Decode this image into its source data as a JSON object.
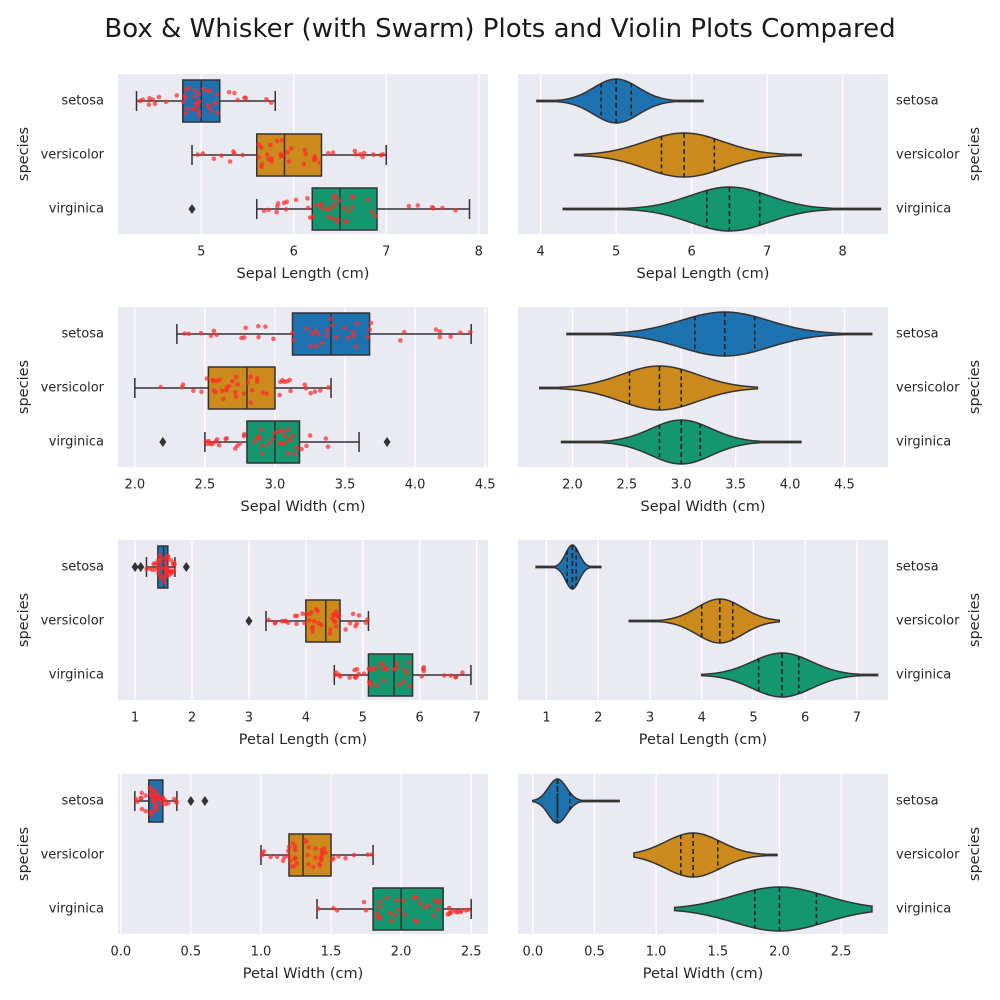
{
  "title": "Box & Whisker (with Swarm) Plots and Violin Plots Compared",
  "colors": {
    "setosa": "#1f72b0",
    "versicolor": "#cc8a1c",
    "virginica": "#14976f",
    "swarm": "#ff2a2a",
    "panel": "#eaeaf2"
  },
  "species": [
    "setosa",
    "versicolor",
    "virginica"
  ],
  "ylabel": "species",
  "chart_data": [
    {
      "type": "box",
      "side": "left",
      "xlabel": "Sepal Length (cm)",
      "xlim": [
        4.1,
        8.1
      ],
      "xticks": [
        "5",
        "6",
        "7",
        "8"
      ],
      "xtick_values": [
        5,
        6,
        7,
        8
      ],
      "boxes": [
        {
          "category": "setosa",
          "q1": 4.8,
          "median": 5.0,
          "q3": 5.2,
          "whisker_low": 4.3,
          "whisker_high": 5.8,
          "outliers": []
        },
        {
          "category": "versicolor",
          "q1": 5.6,
          "median": 5.9,
          "q3": 6.3,
          "whisker_low": 4.9,
          "whisker_high": 7.0,
          "outliers": []
        },
        {
          "category": "virginica",
          "q1": 6.2,
          "median": 6.5,
          "q3": 6.9,
          "whisker_low": 5.6,
          "whisker_high": 7.9,
          "outliers": [
            4.9
          ]
        }
      ]
    },
    {
      "type": "violin",
      "side": "right",
      "xlabel": "Sepal Length (cm)",
      "xlim": [
        3.7,
        8.6
      ],
      "xticks": [
        "4",
        "5",
        "6",
        "7",
        "8"
      ],
      "xtick_values": [
        4,
        5,
        6,
        7,
        8
      ],
      "violins": [
        {
          "category": "setosa",
          "min": 3.95,
          "max": 6.15,
          "q1": 4.8,
          "median": 5.0,
          "q3": 5.2
        },
        {
          "category": "versicolor",
          "min": 4.45,
          "max": 7.45,
          "q1": 5.6,
          "median": 5.9,
          "q3": 6.3
        },
        {
          "category": "virginica",
          "min": 4.3,
          "max": 8.5,
          "q1": 6.2,
          "median": 6.5,
          "q3": 6.9
        }
      ]
    },
    {
      "type": "box",
      "side": "left",
      "xlabel": "Sepal Width (cm)",
      "xlim": [
        1.88,
        4.52
      ],
      "xticks": [
        "2.0",
        "2.5",
        "3.0",
        "3.5",
        "4.0",
        "4.5"
      ],
      "xtick_values": [
        2.0,
        2.5,
        3.0,
        3.5,
        4.0,
        4.5
      ],
      "boxes": [
        {
          "category": "setosa",
          "q1": 3.125,
          "median": 3.4,
          "q3": 3.675,
          "whisker_low": 2.3,
          "whisker_high": 4.4,
          "outliers": []
        },
        {
          "category": "versicolor",
          "q1": 2.525,
          "median": 2.8,
          "q3": 3.0,
          "whisker_low": 2.0,
          "whisker_high": 3.4,
          "outliers": []
        },
        {
          "category": "virginica",
          "q1": 2.8,
          "median": 3.0,
          "q3": 3.175,
          "whisker_low": 2.5,
          "whisker_high": 3.6,
          "outliers": [
            2.2,
            3.8
          ]
        }
      ]
    },
    {
      "type": "violin",
      "side": "right",
      "xlabel": "Sepal Width (cm)",
      "xlim": [
        1.5,
        4.9
      ],
      "xticks": [
        "2.0",
        "2.5",
        "3.0",
        "3.5",
        "4.0",
        "4.5"
      ],
      "xtick_values": [
        2.0,
        2.5,
        3.0,
        3.5,
        4.0,
        4.5
      ],
      "violins": [
        {
          "category": "setosa",
          "min": 1.95,
          "max": 4.75,
          "q1": 3.125,
          "median": 3.4,
          "q3": 3.675
        },
        {
          "category": "versicolor",
          "min": 1.7,
          "max": 3.7,
          "q1": 2.525,
          "median": 2.8,
          "q3": 3.0
        },
        {
          "category": "virginica",
          "min": 1.9,
          "max": 4.1,
          "q1": 2.8,
          "median": 3.0,
          "q3": 3.175
        }
      ]
    },
    {
      "type": "box",
      "side": "left",
      "xlabel": "Petal Length (cm)",
      "xlim": [
        0.7,
        7.2
      ],
      "xticks": [
        "1",
        "2",
        "3",
        "4",
        "5",
        "6",
        "7"
      ],
      "xtick_values": [
        1,
        2,
        3,
        4,
        5,
        6,
        7
      ],
      "boxes": [
        {
          "category": "setosa",
          "q1": 1.4,
          "median": 1.5,
          "q3": 1.575,
          "whisker_low": 1.2,
          "whisker_high": 1.7,
          "outliers": [
            1.0,
            1.1,
            1.9
          ]
        },
        {
          "category": "versicolor",
          "q1": 4.0,
          "median": 4.35,
          "q3": 4.6,
          "whisker_low": 3.3,
          "whisker_high": 5.1,
          "outliers": [
            3.0
          ]
        },
        {
          "category": "virginica",
          "q1": 5.1,
          "median": 5.55,
          "q3": 5.875,
          "whisker_low": 4.5,
          "whisker_high": 6.9,
          "outliers": []
        }
      ]
    },
    {
      "type": "violin",
      "side": "right",
      "xlabel": "Petal Length (cm)",
      "xlim": [
        0.45,
        7.6
      ],
      "xticks": [
        "1",
        "2",
        "3",
        "4",
        "5",
        "6",
        "7"
      ],
      "xtick_values": [
        1,
        2,
        3,
        4,
        5,
        6,
        7
      ],
      "violins": [
        {
          "category": "setosa",
          "min": 0.8,
          "max": 2.05,
          "q1": 1.4,
          "median": 1.5,
          "q3": 1.575
        },
        {
          "category": "versicolor",
          "min": 2.6,
          "max": 5.5,
          "q1": 4.0,
          "median": 4.35,
          "q3": 4.6
        },
        {
          "category": "virginica",
          "min": 4.0,
          "max": 7.4,
          "q1": 5.1,
          "median": 5.55,
          "q3": 5.875
        }
      ]
    },
    {
      "type": "box",
      "side": "left",
      "xlabel": "Petal Width (cm)",
      "xlim": [
        -0.02,
        2.62
      ],
      "xticks": [
        "0.0",
        "0.5",
        "1.0",
        "1.5",
        "2.0",
        "2.5"
      ],
      "xtick_values": [
        0.0,
        0.5,
        1.0,
        1.5,
        2.0,
        2.5
      ],
      "boxes": [
        {
          "category": "setosa",
          "q1": 0.2,
          "median": 0.2,
          "q3": 0.3,
          "whisker_low": 0.1,
          "whisker_high": 0.4,
          "outliers": [
            0.5,
            0.6
          ]
        },
        {
          "category": "versicolor",
          "q1": 1.2,
          "median": 1.3,
          "q3": 1.5,
          "whisker_low": 1.0,
          "whisker_high": 1.8,
          "outliers": []
        },
        {
          "category": "virginica",
          "q1": 1.8,
          "median": 2.0,
          "q3": 2.3,
          "whisker_low": 1.4,
          "whisker_high": 2.5,
          "outliers": []
        }
      ]
    },
    {
      "type": "violin",
      "side": "right",
      "xlabel": "Petal Width (cm)",
      "xlim": [
        -0.12,
        2.88
      ],
      "xticks": [
        "0.0",
        "0.5",
        "1.0",
        "1.5",
        "2.0",
        "2.5"
      ],
      "xtick_values": [
        0.0,
        0.5,
        1.0,
        1.5,
        2.0,
        2.5
      ],
      "violins": [
        {
          "category": "setosa",
          "min": 0.0,
          "max": 0.7,
          "q1": 0.2,
          "median": 0.2,
          "q3": 0.3
        },
        {
          "category": "versicolor",
          "min": 0.82,
          "max": 1.98,
          "q1": 1.2,
          "median": 1.3,
          "q3": 1.5
        },
        {
          "category": "virginica",
          "min": 1.15,
          "max": 2.75,
          "q1": 1.8,
          "median": 2.0,
          "q3": 2.3
        }
      ]
    }
  ]
}
